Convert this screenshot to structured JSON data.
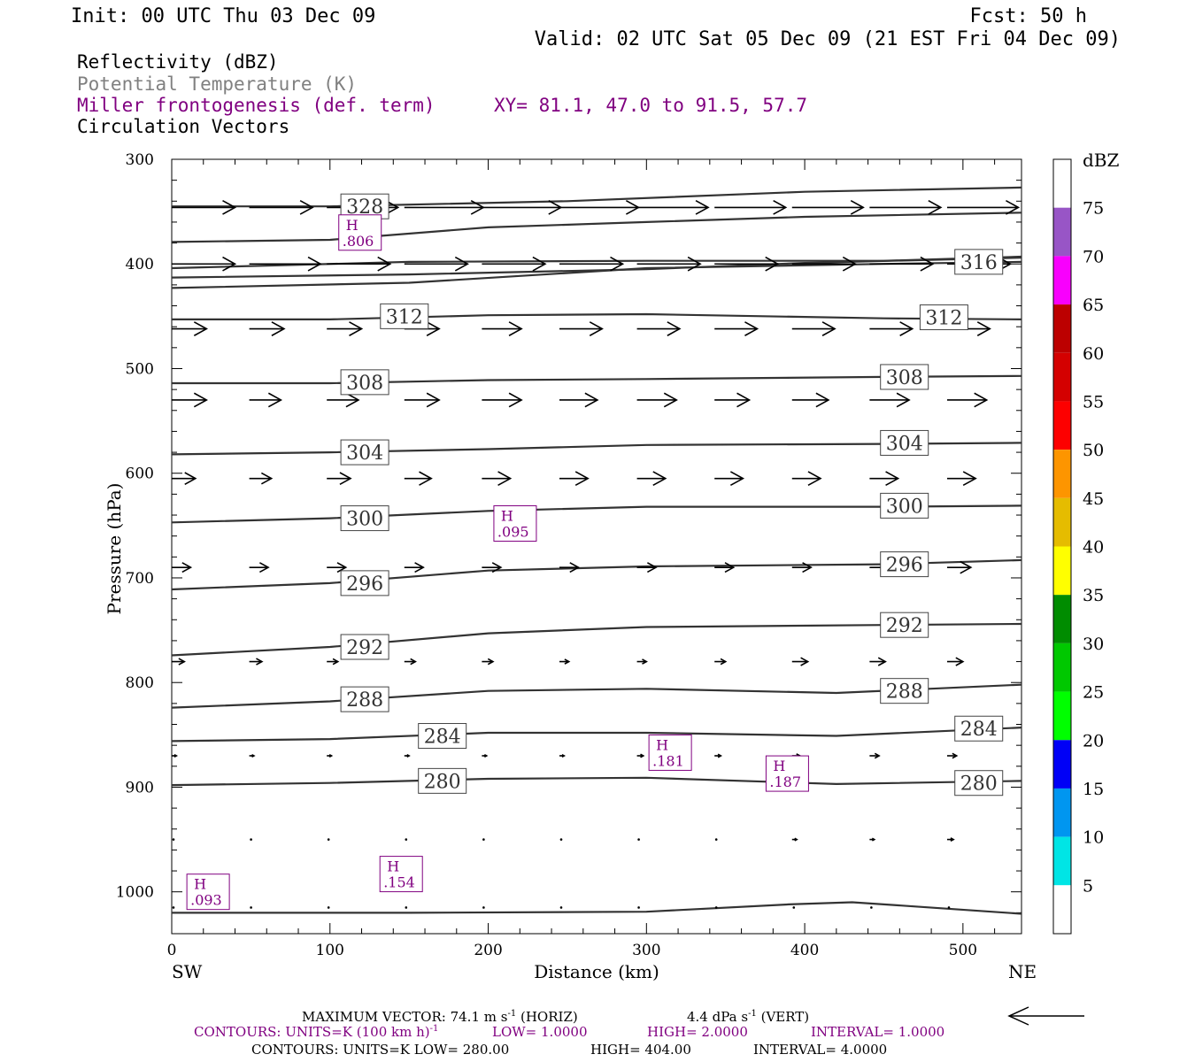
{
  "header": {
    "init": "Init: 00 UTC Thu 03 Dec 09",
    "fcst": "Fcst:   50 h",
    "valid": "Valid: 02 UTC Sat 05 Dec 09 (21 EST Fri 04 Dec 09)",
    "field1": "Reflectivity (dBZ)",
    "field2": "Potential Temperature (K)",
    "field3": "Miller frontogenesis (def. term)",
    "xy": "XY=  81.1, 47.0 to  91.5, 57.7",
    "field4": "Circulation Vectors"
  },
  "colors": {
    "frontogenesis": "#800080",
    "theta": "#333333",
    "vectors": "#000000"
  },
  "axes": {
    "ylabel": "Pressure (hPa)",
    "xlabel": "Distance (km)",
    "left_end": "SW",
    "right_end": "NE",
    "yticks": [
      "300",
      "400",
      "500",
      "600",
      "700",
      "800",
      "900",
      "1000"
    ],
    "xticks": [
      "0",
      "100",
      "200",
      "300",
      "400",
      "500"
    ]
  },
  "colorbar": {
    "unit": "dBZ",
    "labels": [
      "5",
      "10",
      "15",
      "20",
      "25",
      "30",
      "35",
      "40",
      "45",
      "50",
      "55",
      "60",
      "65",
      "70",
      "75"
    ],
    "colors": [
      "#ffffff",
      "#00e5e5",
      "#0096f0",
      "#0000f6",
      "#00ff00",
      "#00c800",
      "#008c00",
      "#ffff00",
      "#e5bc00",
      "#fd9500",
      "#fd0000",
      "#d40000",
      "#bc0000",
      "#f800fd",
      "#9855c6",
      "#ffffff"
    ]
  },
  "footer": {
    "line1a": "MAXIMUM VECTOR:  74.1 m s",
    "line1b": "(HORIZ)",
    "line1c": "4.4 dPa s",
    "line1d": "(VERT)",
    "sup": "-1",
    "line2a": "CONTOURS:  UNITS=K (100 km h)",
    "line2b": "LOW=   1.0000",
    "line2c": "HIGH=   2.0000",
    "line2d": "INTERVAL=    1.0000",
    "line3a": "CONTOURS:  UNITS=K  LOW=   280.00",
    "line3b": "HIGH=   404.00",
    "line3c": "INTERVAL=    4.0000"
  },
  "chart_data": {
    "type": "line",
    "title": "",
    "xlabel": "Distance (km)",
    "ylabel": "Pressure (hPa)",
    "xlim": [
      0,
      537
    ],
    "ylim": [
      1040,
      300
    ],
    "y_inverted": true,
    "theta_contours": [
      {
        "label": "328",
        "points": [
          [
            0,
            345
          ],
          [
            100,
            345
          ],
          [
            250,
            340
          ],
          [
            400,
            331
          ],
          [
            537,
            327
          ]
        ],
        "label_at": [
          122,
          345
        ]
      },
      {
        "label": "",
        "points": [
          [
            0,
            379
          ],
          [
            100,
            377
          ],
          [
            200,
            365
          ],
          [
            300,
            360
          ],
          [
            400,
            355
          ],
          [
            537,
            351
          ]
        ]
      },
      {
        "label": "",
        "points": [
          [
            0,
            404
          ],
          [
            150,
            398
          ],
          [
            300,
            397
          ],
          [
            450,
            397
          ],
          [
            537,
            393
          ]
        ]
      },
      {
        "label": "",
        "points": [
          [
            0,
            413
          ],
          [
            150,
            410
          ],
          [
            300,
            405
          ],
          [
            400,
            399
          ],
          [
            537,
            394
          ]
        ]
      },
      {
        "label": "316",
        "points": [
          [
            0,
            423
          ],
          [
            150,
            418
          ],
          [
            300,
            404
          ],
          [
            450,
            400
          ],
          [
            537,
            398
          ]
        ],
        "label_at": [
          510,
          398
        ]
      },
      {
        "label": "312",
        "points": [
          [
            0,
            453
          ],
          [
            100,
            453
          ],
          [
            200,
            449
          ],
          [
            300,
            448
          ],
          [
            450,
            452
          ],
          [
            537,
            453
          ]
        ],
        "label_at": [
          147,
          450
        ],
        "label_at2": [
          488,
          451
        ]
      },
      {
        "label": "308",
        "points": [
          [
            0,
            514
          ],
          [
            100,
            514
          ],
          [
            200,
            511
          ],
          [
            300,
            510
          ],
          [
            450,
            508
          ],
          [
            537,
            507
          ]
        ],
        "label_at": [
          122,
          513
        ],
        "label_at2": [
          463,
          508
        ]
      },
      {
        "label": "304",
        "points": [
          [
            0,
            582
          ],
          [
            100,
            580
          ],
          [
            200,
            577
          ],
          [
            300,
            573
          ],
          [
            450,
            572
          ],
          [
            537,
            571
          ]
        ],
        "label_at": [
          122,
          580
        ],
        "label_at2": [
          463,
          571
        ]
      },
      {
        "label": "300",
        "points": [
          [
            0,
            647
          ],
          [
            100,
            643
          ],
          [
            200,
            636
          ],
          [
            300,
            632
          ],
          [
            450,
            632
          ],
          [
            537,
            631
          ]
        ],
        "label_at": [
          122,
          643
        ],
        "label_at2": [
          463,
          631
        ]
      },
      {
        "label": "296",
        "points": [
          [
            0,
            711
          ],
          [
            100,
            705
          ],
          [
            200,
            693
          ],
          [
            300,
            689
          ],
          [
            450,
            687
          ],
          [
            537,
            683
          ]
        ],
        "label_at": [
          122,
          705
        ],
        "label_at2": [
          463,
          687
        ]
      },
      {
        "label": "292",
        "points": [
          [
            0,
            774
          ],
          [
            100,
            766
          ],
          [
            200,
            753
          ],
          [
            300,
            747
          ],
          [
            450,
            745
          ],
          [
            537,
            744
          ]
        ],
        "label_at": [
          122,
          766
        ],
        "label_at2": [
          463,
          745
        ]
      },
      {
        "label": "288",
        "points": [
          [
            0,
            824
          ],
          [
            100,
            818
          ],
          [
            200,
            808
          ],
          [
            300,
            806
          ],
          [
            420,
            810
          ],
          [
            537,
            802
          ]
        ],
        "label_at": [
          122,
          816
        ],
        "label_at2": [
          463,
          808
        ]
      },
      {
        "label": "284",
        "points": [
          [
            0,
            856
          ],
          [
            100,
            854
          ],
          [
            200,
            848
          ],
          [
            300,
            848
          ],
          [
            420,
            851
          ],
          [
            537,
            843
          ]
        ],
        "label_at": [
          171,
          851
        ],
        "label_at2": [
          510,
          844
        ]
      },
      {
        "label": "280",
        "points": [
          [
            0,
            898
          ],
          [
            100,
            896
          ],
          [
            200,
            892
          ],
          [
            300,
            891
          ],
          [
            420,
            897
          ],
          [
            537,
            894
          ]
        ],
        "label_at": [
          171,
          894
        ],
        "label_at2": [
          510,
          896
        ]
      },
      {
        "label": "",
        "points": [
          [
            0,
            1020
          ],
          [
            150,
            1020
          ],
          [
            300,
            1019
          ],
          [
            390,
            1012
          ],
          [
            430,
            1010
          ],
          [
            470,
            1014
          ],
          [
            537,
            1021
          ]
        ]
      }
    ],
    "frontogenesis_maxima": [
      {
        "label": "H",
        "value": ".806",
        "x": 119,
        "p": 370
      },
      {
        "label": "H",
        "value": ".095",
        "x": 217,
        "p": 648
      },
      {
        "label": "H",
        "value": ".181",
        "x": 315,
        "p": 867
      },
      {
        "label": "H",
        "value": ".187",
        "x": 389,
        "p": 887
      },
      {
        "label": "H",
        "value": ".093",
        "x": 23,
        "p": 1000
      },
      {
        "label": "H",
        "value": ".154",
        "x": 145,
        "p": 983
      }
    ],
    "vector_levels_hpa": [
      346,
      400,
      462,
      530,
      605,
      690,
      780,
      870,
      950,
      1015
    ],
    "vector_x_km": [
      0,
      49,
      98,
      147,
      196,
      245,
      294,
      343,
      392,
      441,
      490
    ],
    "vector_lengths_km": [
      [
        40,
        40,
        45,
        50,
        50,
        50,
        45,
        45,
        45,
        45,
        45
      ],
      [
        40,
        45,
        40,
        40,
        40,
        40,
        40,
        40,
        40,
        40,
        40
      ],
      [
        22,
        22,
        22,
        22,
        25,
        27,
        27,
        27,
        27,
        27,
        27
      ],
      [
        22,
        20,
        20,
        22,
        25,
        24,
        25,
        22,
        23,
        25,
        25
      ],
      [
        15,
        14,
        15,
        17,
        18,
        18,
        18,
        18,
        18,
        18,
        18
      ],
      [
        12,
        12,
        12,
        12,
        12,
        12,
        12,
        12,
        12,
        15,
        15
      ],
      [
        8,
        8,
        7,
        7,
        7,
        6,
        6,
        7,
        10,
        10,
        10
      ],
      [
        3,
        3,
        3,
        3,
        3,
        3,
        4,
        4,
        5,
        6,
        6
      ],
      [
        1,
        1,
        1,
        1,
        1,
        1,
        1,
        1,
        3,
        3,
        4
      ],
      [
        1,
        1,
        1,
        1,
        1,
        1,
        1,
        1,
        1,
        1,
        1
      ]
    ]
  }
}
